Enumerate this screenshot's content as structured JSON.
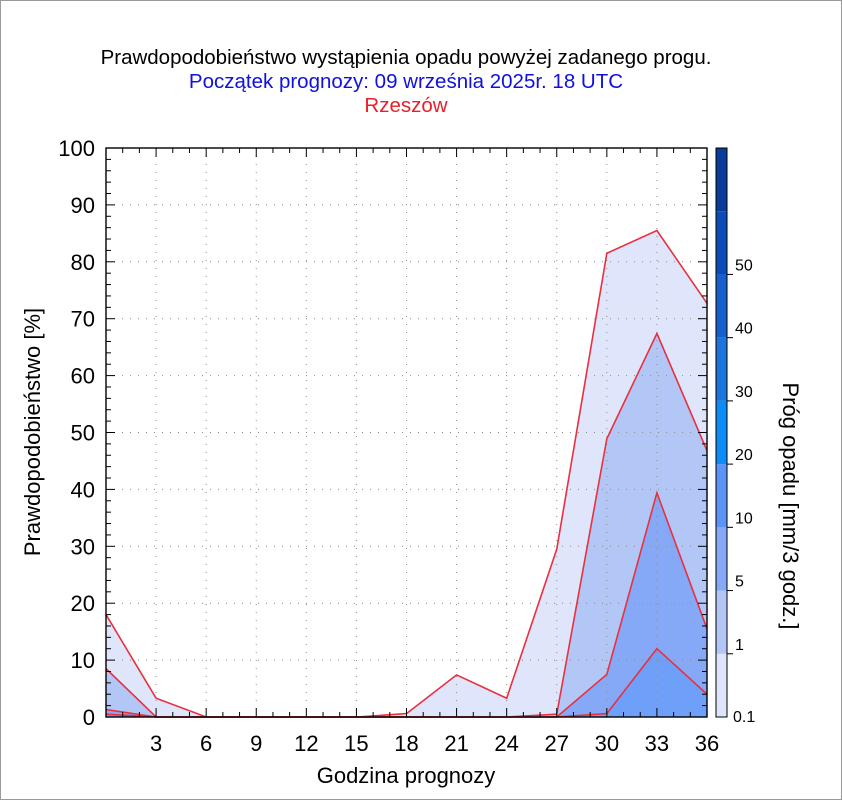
{
  "chart_data": {
    "type": "area",
    "title": "Prawdopodobieństwo wystąpienia opadu powyżej zadanego progu.",
    "subtitle": "Początek prognozy: 09 września 2025r. 18 UTC",
    "location": "Rzeszów",
    "xlabel": "Godzina prognozy",
    "ylabel": "Prawdopodobieństwo [%]",
    "xlim": [
      0,
      36
    ],
    "ylim": [
      0,
      100
    ],
    "x_ticks": [
      3,
      6,
      9,
      12,
      15,
      18,
      21,
      24,
      27,
      30,
      33,
      36
    ],
    "y_ticks": [
      0,
      10,
      20,
      30,
      40,
      50,
      60,
      70,
      80,
      90,
      100
    ],
    "x": [
      0,
      3,
      6,
      9,
      12,
      15,
      18,
      21,
      24,
      27,
      30,
      33,
      36
    ],
    "series": [
      {
        "threshold": "0.1",
        "color": "#dfe6fb",
        "values": [
          18,
          3.3,
          0,
          0,
          0,
          0,
          0.6,
          7.4,
          3.3,
          29.5,
          81.5,
          85.5,
          72.7
        ]
      },
      {
        "threshold": "1",
        "color": "#b3c7f7",
        "values": [
          8.5,
          0,
          0,
          0,
          0,
          0,
          0,
          0,
          0,
          0.5,
          48.9,
          67.4,
          46.8
        ]
      },
      {
        "threshold": "5",
        "color": "#85a9f6",
        "values": [
          1.3,
          0,
          0,
          0,
          0,
          0,
          0,
          0,
          0,
          0,
          7.5,
          39.4,
          15.5
        ]
      },
      {
        "threshold": "10",
        "color": "#6fa0f9",
        "values": [
          0.5,
          0,
          0,
          0,
          0,
          0,
          0,
          0,
          0,
          0,
          0.6,
          12,
          4
        ]
      }
    ],
    "colorbar": {
      "title": "Próg opadu [mm/3 godz.]",
      "labels": [
        "0.1",
        "1",
        "5",
        "10",
        "20",
        "30",
        "40",
        "50"
      ],
      "colors": [
        "#dfe6fb",
        "#b3c7f7",
        "#85a9f6",
        "#5d92f8",
        "#0d8cf5",
        "#1c74dd",
        "#1560cc",
        "#0b4db8",
        "#083c9a"
      ]
    },
    "line_color": "#e83040",
    "grid": true,
    "legend_position": "right colorbar"
  }
}
